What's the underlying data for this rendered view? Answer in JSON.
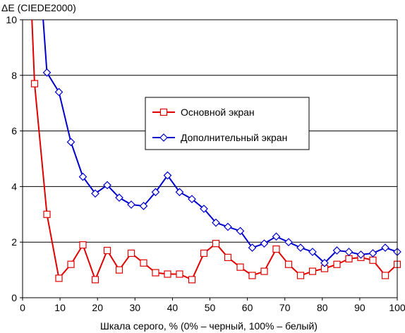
{
  "chart_data": {
    "type": "line",
    "title": "",
    "ylabel": "ΔE (CIEDE2000)",
    "xlabel": "Шкала серого, % (0% – черный, 100% – белый)",
    "xlim": [
      0,
      100
    ],
    "ylim": [
      0,
      10
    ],
    "xticks": [
      0,
      10,
      20,
      30,
      40,
      50,
      60,
      70,
      80,
      90,
      100
    ],
    "yticks": [
      0,
      2,
      4,
      6,
      8,
      10
    ],
    "grid": "horizontal",
    "legend_placement": "center-right",
    "series": [
      {
        "name": "Основной экран",
        "color": "#e00000",
        "marker": "square",
        "x": [
          2.5,
          3.2,
          6.5,
          9.7,
          12.9,
          16.1,
          19.4,
          22.6,
          25.8,
          29.0,
          32.3,
          35.5,
          38.7,
          41.9,
          45.2,
          48.4,
          51.6,
          54.8,
          58.1,
          61.3,
          64.5,
          67.7,
          71.0,
          74.2,
          77.4,
          80.6,
          83.9,
          87.1,
          90.3,
          93.5,
          96.8,
          100
        ],
        "values": [
          10.0,
          7.7,
          3.0,
          0.7,
          1.2,
          1.9,
          0.65,
          1.7,
          1.0,
          1.6,
          1.25,
          0.9,
          0.85,
          0.85,
          0.65,
          1.6,
          1.95,
          1.45,
          1.1,
          0.8,
          0.95,
          1.75,
          1.2,
          0.8,
          0.95,
          1.05,
          1.2,
          1.4,
          1.45,
          1.35,
          0.8,
          1.2
        ],
        "markers_from_index": 1
      },
      {
        "name": "Дополнительный экран",
        "color": "#0000cc",
        "marker": "diamond",
        "x": [
          5.5,
          6.5,
          9.7,
          12.9,
          16.1,
          19.4,
          22.6,
          25.8,
          29.0,
          32.3,
          35.5,
          38.7,
          41.9,
          45.2,
          48.4,
          51.6,
          54.8,
          58.1,
          61.3,
          64.5,
          67.7,
          71.0,
          74.2,
          77.4,
          80.6,
          83.9,
          87.1,
          90.3,
          93.5,
          96.8,
          100
        ],
        "values": [
          10.0,
          8.1,
          7.4,
          5.6,
          4.35,
          3.75,
          4.05,
          3.6,
          3.35,
          3.3,
          3.8,
          4.4,
          3.8,
          3.55,
          3.2,
          2.7,
          2.55,
          2.4,
          1.8,
          1.95,
          2.2,
          2.0,
          1.8,
          1.65,
          1.25,
          1.7,
          1.65,
          1.55,
          1.6,
          1.8,
          1.65
        ],
        "markers_from_index": 1
      }
    ]
  }
}
